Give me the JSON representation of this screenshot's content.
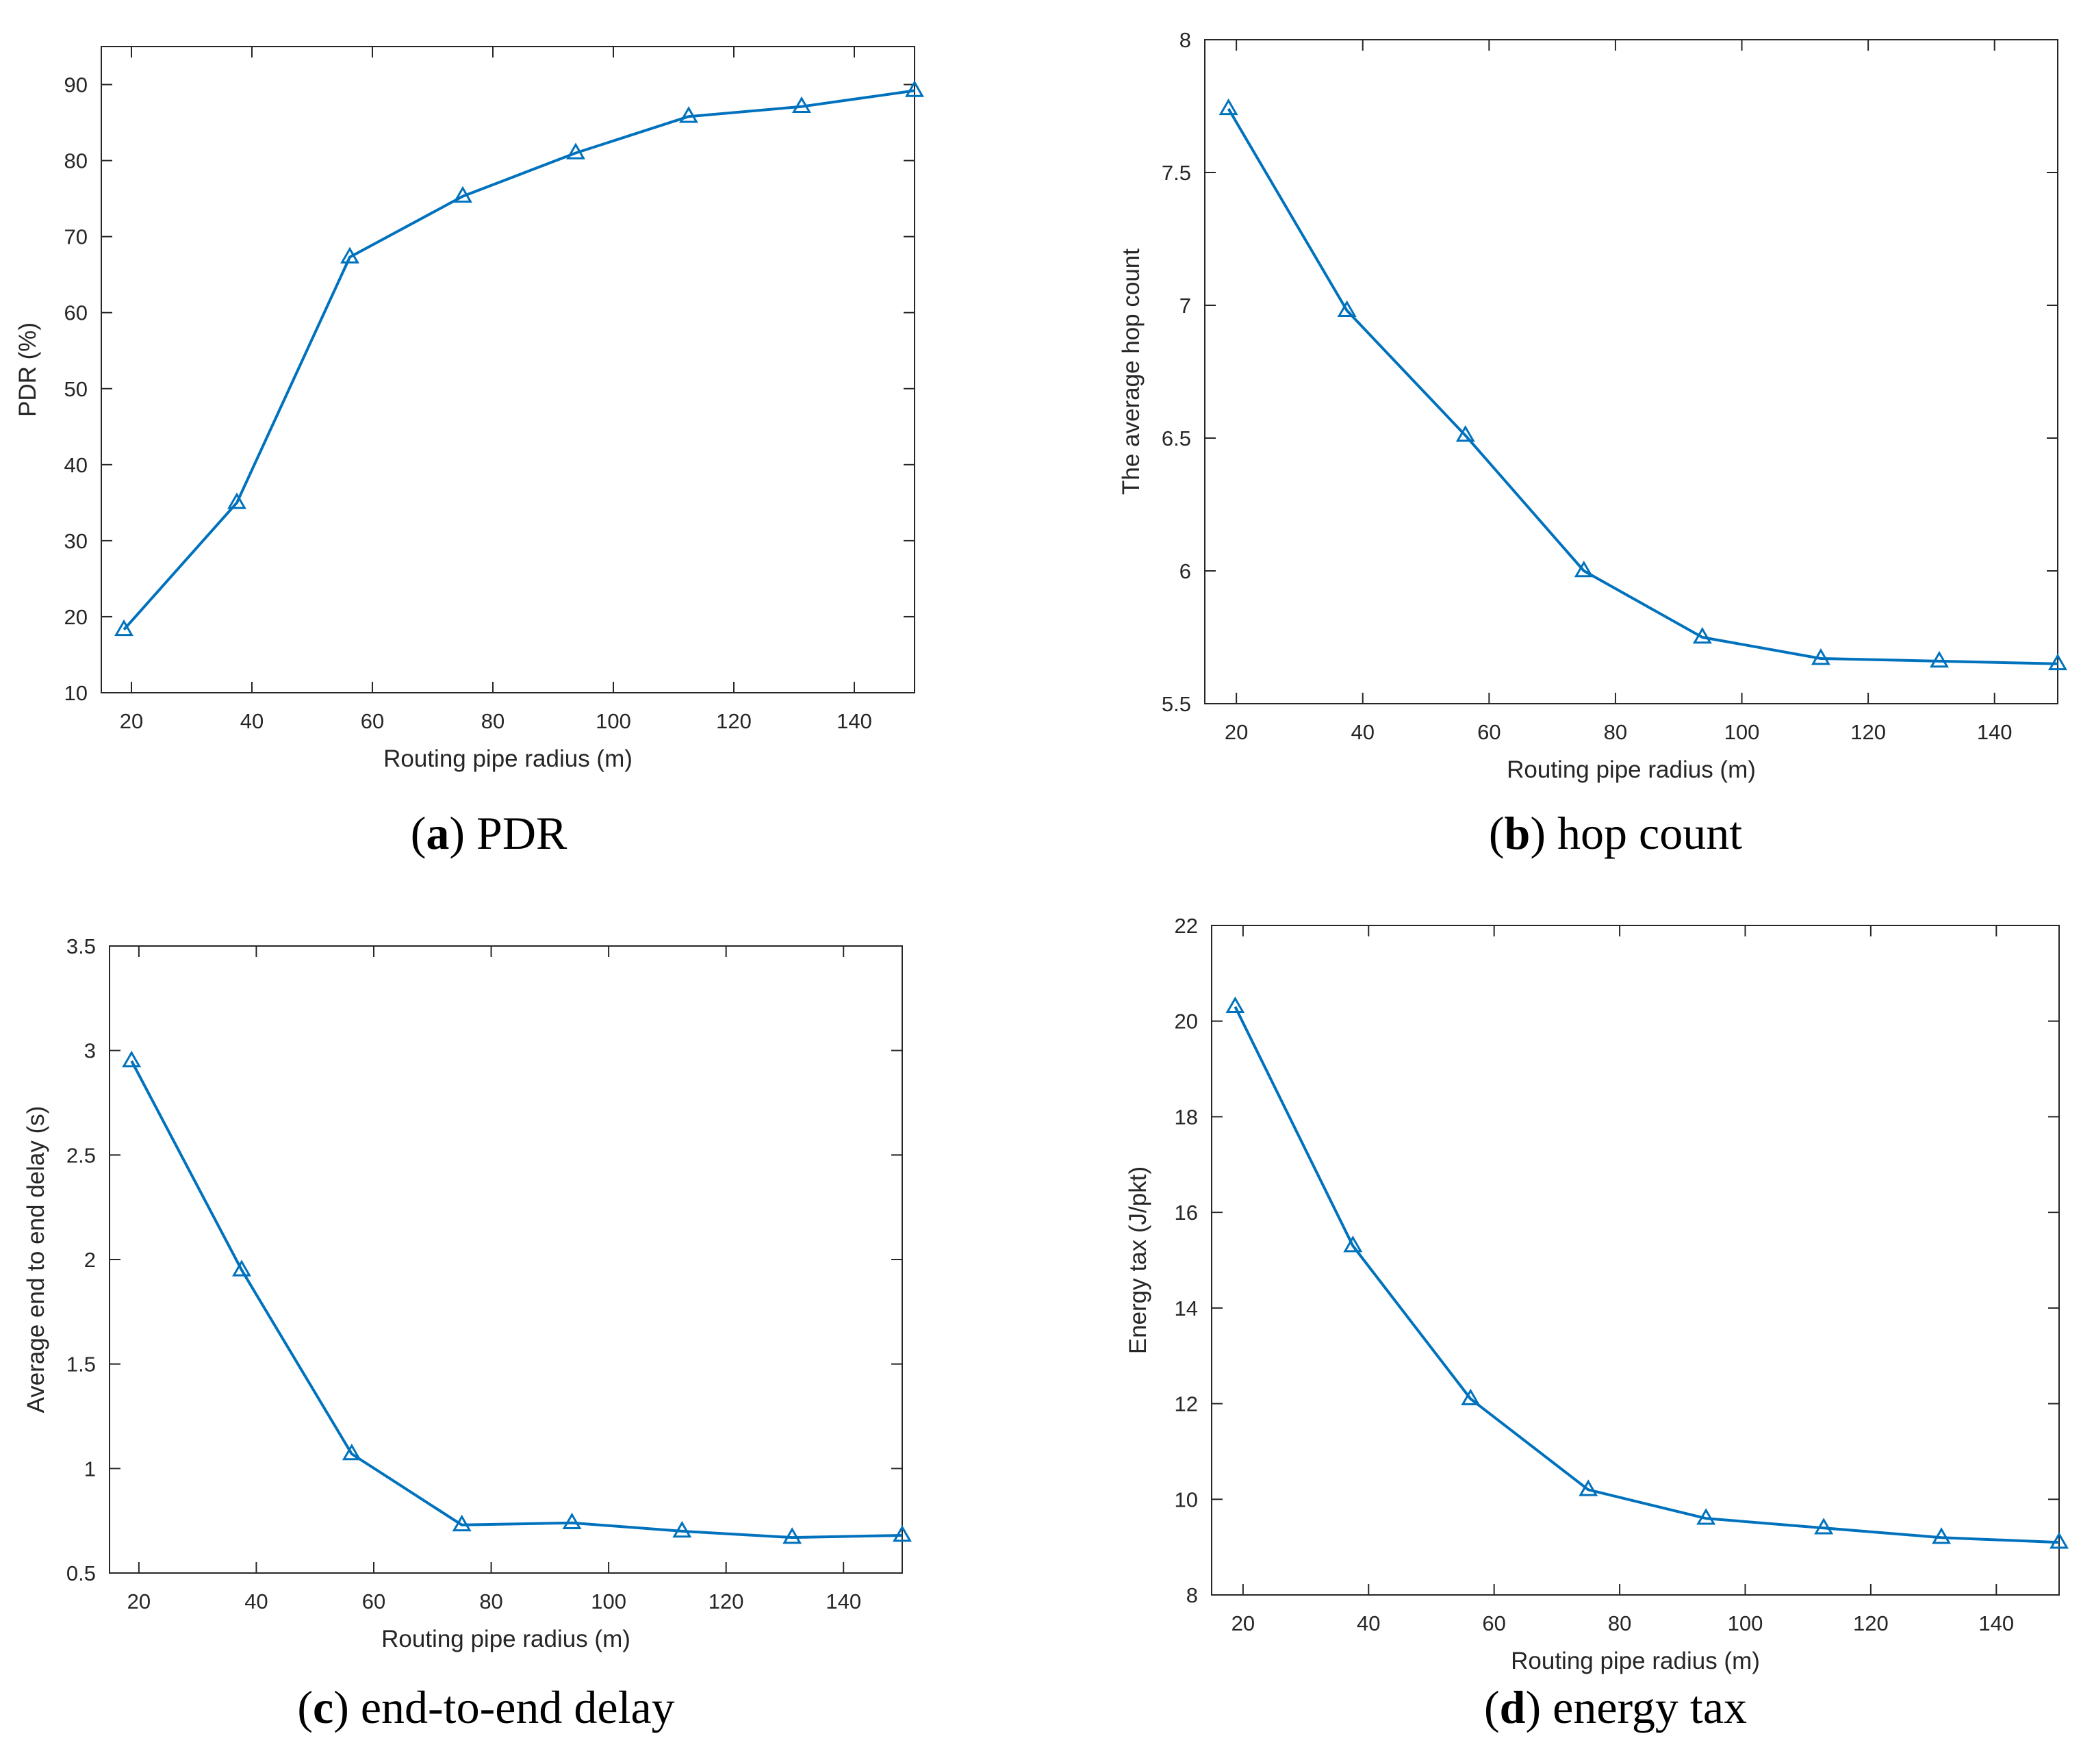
{
  "series_color": "#0072BD",
  "marker": "triangle",
  "chart_data": [
    {
      "type": "line",
      "caption_letter": "a",
      "caption_text": "PDR",
      "xlabel": "Routing pipe radius (m)",
      "ylabel": "PDR (%)",
      "xlim": [
        15,
        150
      ],
      "ylim": [
        10,
        95
      ],
      "xticks": [
        "20",
        "40",
        "60",
        "80",
        "100",
        "120",
        "140"
      ],
      "yticks": [
        "10",
        "20",
        "30",
        "40",
        "50",
        "60",
        "70",
        "80",
        "90"
      ],
      "x": [
        18.75,
        37.5,
        56.25,
        75,
        93.75,
        112.5,
        131.25,
        150
      ],
      "values": [
        18.3,
        35,
        67.3,
        75.3,
        81,
        85.8,
        87.1,
        89.2
      ]
    },
    {
      "type": "line",
      "caption_letter": "b",
      "caption_text": "hop count",
      "xlabel": "Routing pipe radius (m)",
      "ylabel": "The average hop count",
      "xlim": [
        15,
        150
      ],
      "ylim": [
        5.5,
        8
      ],
      "xticks": [
        "20",
        "40",
        "60",
        "80",
        "100",
        "120",
        "140"
      ],
      "yticks": [
        "5.5",
        "6",
        "6.5",
        "7",
        "7.5",
        "8"
      ],
      "x": [
        18.75,
        37.5,
        56.25,
        75,
        93.75,
        112.5,
        131.25,
        150
      ],
      "values": [
        7.74,
        6.98,
        6.51,
        6.0,
        5.75,
        5.67,
        5.66,
        5.65
      ]
    },
    {
      "type": "line",
      "caption_letter": "c",
      "caption_text": "end-to-end delay",
      "xlabel": "Routing pipe radius (m)",
      "ylabel": "Average end to end delay (s)",
      "xlim": [
        15,
        150
      ],
      "ylim": [
        0.5,
        3.5
      ],
      "xticks": [
        "20",
        "40",
        "60",
        "80",
        "100",
        "120",
        "140"
      ],
      "yticks": [
        "0.5",
        "1",
        "1.5",
        "2",
        "2.5",
        "3",
        "3.5"
      ],
      "x": [
        18.75,
        37.5,
        56.25,
        75,
        93.75,
        112.5,
        131.25,
        150
      ],
      "values": [
        2.95,
        1.95,
        1.07,
        0.73,
        0.74,
        0.7,
        0.67,
        0.68
      ]
    },
    {
      "type": "line",
      "caption_letter": "d",
      "caption_text": "energy tax",
      "xlabel": "Routing pipe radius (m)",
      "ylabel": "Energy tax (J/pkt)",
      "xlim": [
        15,
        150
      ],
      "ylim": [
        8,
        22
      ],
      "xticks": [
        "20",
        "40",
        "60",
        "80",
        "100",
        "120",
        "140"
      ],
      "yticks": [
        "8",
        "10",
        "12",
        "14",
        "16",
        "18",
        "20",
        "22"
      ],
      "x": [
        18.75,
        37.5,
        56.25,
        75,
        93.75,
        112.5,
        131.25,
        150
      ],
      "values": [
        20.3,
        15.3,
        12.1,
        10.2,
        9.6,
        9.4,
        9.2,
        9.1
      ]
    }
  ]
}
